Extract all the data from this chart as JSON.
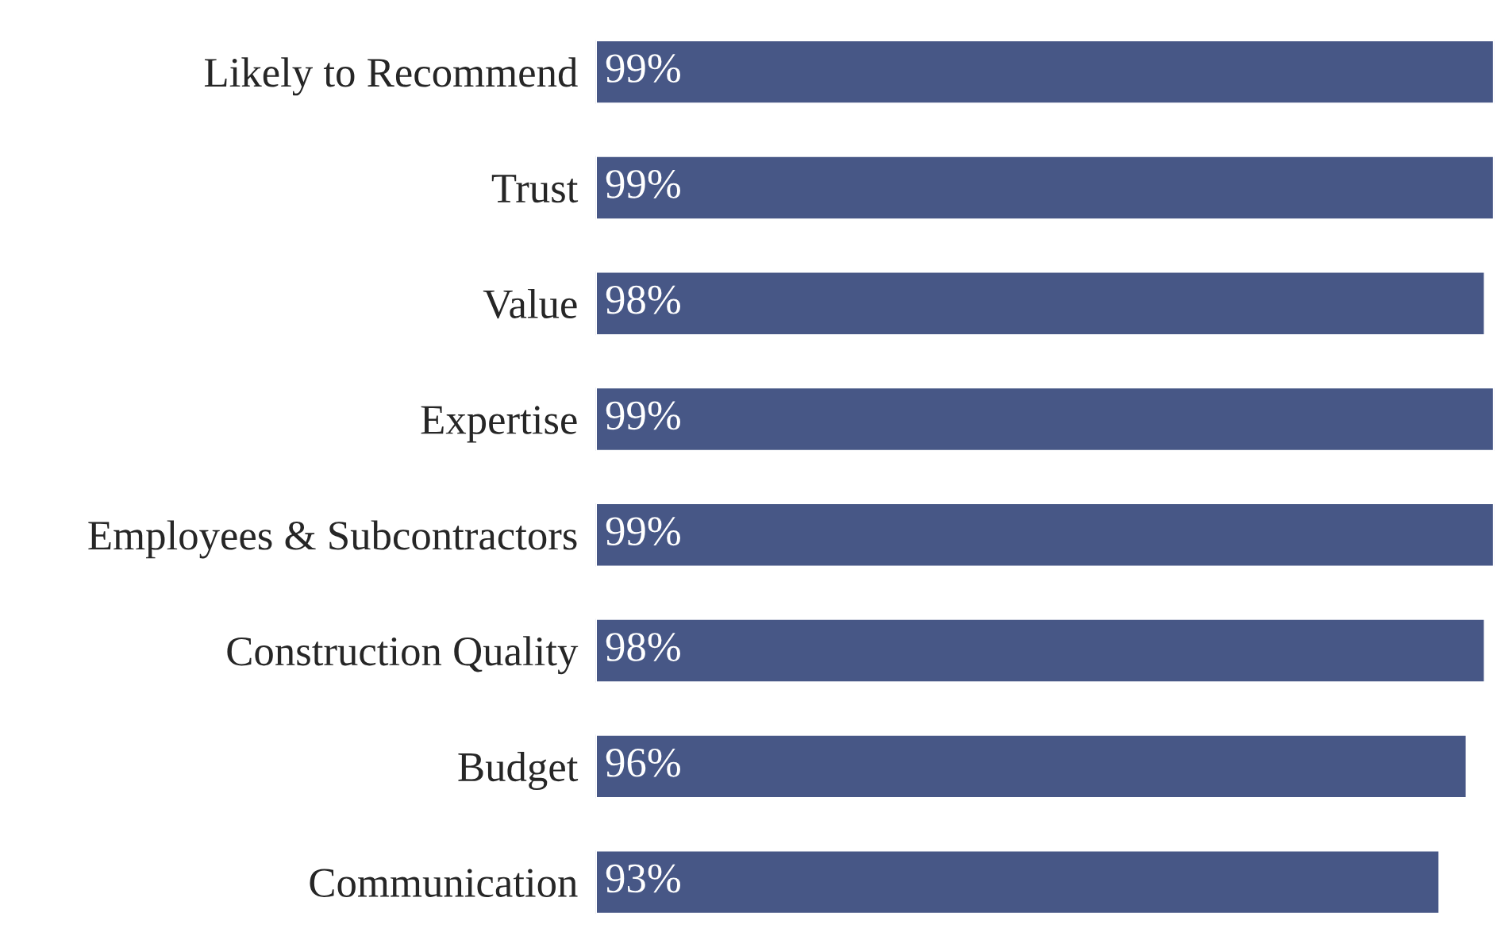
{
  "chart_data": {
    "type": "bar",
    "orientation": "horizontal",
    "categories": [
      "Likely to Recommend",
      "Trust",
      "Value",
      "Expertise",
      "Employees & Subcontractors",
      "Construction Quality",
      "Budget",
      "Communication"
    ],
    "values": [
      99,
      99,
      98,
      99,
      99,
      98,
      96,
      93
    ],
    "value_labels": [
      "99%",
      "99%",
      "98%",
      "99%",
      "99%",
      "98%",
      "96%",
      "93%"
    ],
    "color": "#475786",
    "tick_labels": "y",
    "grid": false
  }
}
